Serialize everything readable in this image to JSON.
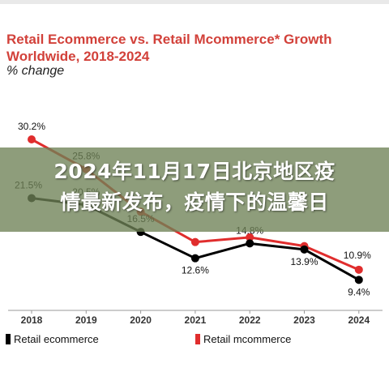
{
  "chart_data": {
    "type": "line",
    "title": "Retail Ecommerce vs. Retail Mcommerce* Growth Worldwide, 2018-2024",
    "subtitle": "% change",
    "categories": [
      "2018",
      "2019",
      "2020",
      "2021",
      "2022",
      "2023",
      "2024"
    ],
    "series": [
      {
        "name": "Retail ecommerce",
        "color": "#000000",
        "values": [
          21.5,
          20.5,
          16.5,
          12.6,
          14.8,
          13.9,
          9.4
        ],
        "labels": [
          "21.5%",
          "20.5%",
          "16.5%",
          "12.6%",
          "14.8%",
          "13.9%",
          "9.4%"
        ]
      },
      {
        "name": "Retail mcommerce",
        "color": "#e02d2d",
        "values": [
          30.2,
          25.8,
          19.5,
          15.0,
          15.7,
          14.4,
          10.9
        ],
        "labels": [
          "30.2%",
          "25.8%",
          "",
          "",
          "",
          "",
          "10.9%"
        ]
      }
    ],
    "ylim": [
      5,
      35
    ],
    "grid": false,
    "legend": "bottom"
  },
  "overlay": {
    "line1": "2024年11月17日北京地区疫",
    "line2": "情最新发布，疫情下的温馨日"
  }
}
